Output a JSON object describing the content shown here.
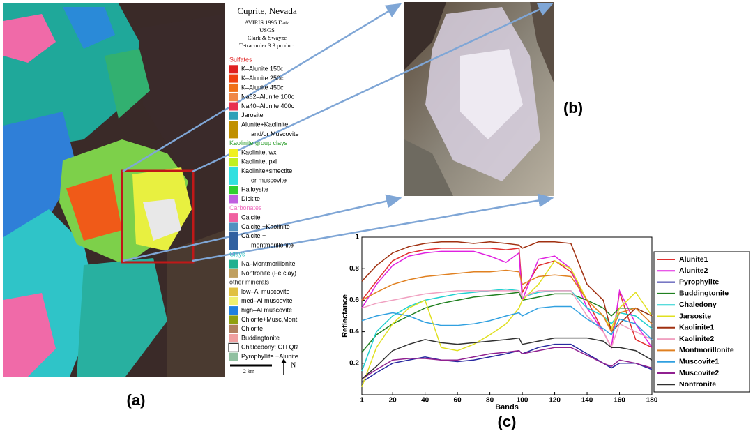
{
  "map": {
    "title": "Cuprite, Nevada",
    "credits": [
      "AVIRIS 1995 Data",
      "USGS",
      "Clark & Swayze",
      "Tetracorder 3.3 product"
    ],
    "sections": [
      {
        "heading": "Sulfates",
        "color": "#e02020",
        "items": [
          {
            "lines": [
              "K–Alunite 150c"
            ],
            "color": "#e02020"
          },
          {
            "lines": [
              "K–Alunite 250c"
            ],
            "color": "#f04010"
          },
          {
            "lines": [
              "K–Alunite 450c"
            ],
            "color": "#f07018"
          },
          {
            "lines": [
              "Na82–Alunite 100c"
            ],
            "color": "#f08848"
          },
          {
            "lines": [
              "Na40–Alunite 400c"
            ],
            "color": "#e83050"
          },
          {
            "lines": [
              "Jarosite"
            ],
            "color": "#30a0b8"
          },
          {
            "lines": [
              "Alunite+Kaolinite",
              "and/or Muscovite"
            ],
            "color": "#c09000"
          }
        ]
      },
      {
        "heading": "Kaolinite group clays",
        "color": "#30a030",
        "items": [
          {
            "lines": [
              "Kaolinite, wxl"
            ],
            "color": "#f0f020"
          },
          {
            "lines": [
              "Kaolinite, pxl"
            ],
            "color": "#c0f020"
          },
          {
            "lines": [
              "Kaolinite+smectite",
              "or muscovite"
            ],
            "color": "#30e0e0"
          },
          {
            "lines": [
              "Halloysite"
            ],
            "color": "#30d030"
          },
          {
            "lines": [
              "Dickite"
            ],
            "color": "#c060e0"
          }
        ]
      },
      {
        "heading": "Carbonates",
        "color": "#f070c0",
        "items": [
          {
            "lines": [
              "Calcite"
            ],
            "color": "#f060a0"
          },
          {
            "lines": [
              "Calcite +Kaolinite"
            ],
            "color": "#5090c0"
          },
          {
            "lines": [
              "Calcite +",
              "montmorillonite"
            ],
            "color": "#3060a0"
          }
        ]
      },
      {
        "heading": "Clays",
        "color": "#30c0c0",
        "items": [
          {
            "lines": [
              "Na–Montmorillonite"
            ],
            "color": "#20b090"
          },
          {
            "lines": [
              "Nontronite (Fe clay)"
            ],
            "color": "#c0a060"
          }
        ]
      },
      {
        "heading": "other minerals",
        "color": "#303030",
        "items": [
          {
            "lines": [
              "low–Al muscovite"
            ],
            "color": "#e0c040"
          },
          {
            "lines": [
              "med–Al muscovite"
            ],
            "color": "#f0f070"
          },
          {
            "lines": [
              "high–Al muscovite"
            ],
            "color": "#2080e0"
          },
          {
            "lines": [
              "Chlorite+Musc,Mont"
            ],
            "color": "#90a010"
          },
          {
            "lines": [
              "Chlorite"
            ],
            "color": "#b08060"
          },
          {
            "lines": [
              "Buddingtonite"
            ],
            "color": "#f0a0a0"
          },
          {
            "lines": [
              "Chalcedony: OH Qtz"
            ],
            "color": "#ffffff"
          },
          {
            "lines": [
              "Pyrophyllite +Alunite"
            ],
            "color": "#90c0a0"
          }
        ]
      }
    ],
    "scale": "2 km",
    "north": "N"
  },
  "panel_labels": [
    "(a)",
    "(b)",
    "(c)"
  ],
  "chart_data": {
    "type": "line",
    "xlabel": "Bands",
    "ylabel": "Reflectance",
    "x": [
      1,
      10,
      20,
      30,
      40,
      50,
      60,
      70,
      80,
      90,
      98,
      100,
      110,
      120,
      130,
      140,
      150,
      155,
      160,
      170,
      180
    ],
    "xlim": [
      1,
      180
    ],
    "xticks": [
      1,
      20,
      40,
      60,
      80,
      100,
      120,
      140,
      160,
      180
    ],
    "ylim": [
      0,
      1
    ],
    "yticks": [
      0.2,
      0.4,
      0.6,
      0.8,
      1
    ],
    "legend": "right",
    "series": [
      {
        "name": "Alunite1",
        "color": "#e03030",
        "values": [
          0.6,
          0.72,
          0.85,
          0.9,
          0.92,
          0.93,
          0.93,
          0.93,
          0.93,
          0.92,
          0.93,
          0.65,
          0.82,
          0.85,
          0.78,
          0.6,
          0.4,
          0.3,
          0.65,
          0.35,
          0.3
        ]
      },
      {
        "name": "Alunite2",
        "color": "#e020e0",
        "values": [
          0.55,
          0.7,
          0.82,
          0.88,
          0.9,
          0.91,
          0.91,
          0.91,
          0.88,
          0.84,
          0.9,
          0.6,
          0.86,
          0.88,
          0.8,
          0.55,
          0.4,
          0.3,
          0.66,
          0.45,
          0.3
        ]
      },
      {
        "name": "Pyrophylite",
        "color": "#2828a0",
        "values": [
          0.08,
          0.14,
          0.2,
          0.22,
          0.24,
          0.22,
          0.21,
          0.22,
          0.24,
          0.26,
          0.28,
          0.26,
          0.3,
          0.32,
          0.32,
          0.26,
          0.2,
          0.17,
          0.2,
          0.2,
          0.16
        ]
      },
      {
        "name": "Buddingtonite",
        "color": "#208020",
        "values": [
          0.27,
          0.38,
          0.45,
          0.5,
          0.55,
          0.58,
          0.6,
          0.62,
          0.63,
          0.64,
          0.65,
          0.6,
          0.62,
          0.64,
          0.64,
          0.6,
          0.55,
          0.5,
          0.55,
          0.55,
          0.5
        ]
      },
      {
        "name": "Chaledony",
        "color": "#20d0d0",
        "values": [
          0.15,
          0.4,
          0.5,
          0.56,
          0.6,
          0.62,
          0.64,
          0.65,
          0.66,
          0.67,
          0.66,
          0.62,
          0.65,
          0.66,
          0.66,
          0.55,
          0.5,
          0.45,
          0.52,
          0.5,
          0.42
        ]
      },
      {
        "name": "Jarsosite",
        "color": "#e0e020",
        "values": [
          0.05,
          0.3,
          0.45,
          0.55,
          0.6,
          0.3,
          0.28,
          0.32,
          0.38,
          0.45,
          0.55,
          0.6,
          0.7,
          0.85,
          0.8,
          0.6,
          0.5,
          0.42,
          0.55,
          0.65,
          0.5
        ]
      },
      {
        "name": "Kaolinite1",
        "color": "#a03010",
        "values": [
          0.72,
          0.82,
          0.9,
          0.94,
          0.96,
          0.97,
          0.97,
          0.96,
          0.97,
          0.96,
          0.95,
          0.93,
          0.97,
          0.97,
          0.96,
          0.7,
          0.6,
          0.4,
          0.45,
          0.55,
          0.5
        ]
      },
      {
        "name": "Kaolinite2",
        "color": "#f0a0c0",
        "values": [
          0.55,
          0.58,
          0.6,
          0.62,
          0.64,
          0.65,
          0.66,
          0.66,
          0.66,
          0.66,
          0.66,
          0.62,
          0.66,
          0.66,
          0.66,
          0.5,
          0.4,
          0.3,
          0.45,
          0.4,
          0.35
        ]
      },
      {
        "name": "Montmorillonite",
        "color": "#e08020",
        "values": [
          0.6,
          0.65,
          0.7,
          0.73,
          0.75,
          0.76,
          0.77,
          0.78,
          0.78,
          0.79,
          0.78,
          0.7,
          0.75,
          0.76,
          0.75,
          0.6,
          0.5,
          0.4,
          0.52,
          0.55,
          0.45
        ]
      },
      {
        "name": "Muscovite1",
        "color": "#30a0e0",
        "values": [
          0.47,
          0.5,
          0.52,
          0.5,
          0.46,
          0.44,
          0.44,
          0.45,
          0.47,
          0.5,
          0.52,
          0.5,
          0.55,
          0.56,
          0.56,
          0.48,
          0.42,
          0.38,
          0.48,
          0.45,
          0.35
        ]
      },
      {
        "name": "Muscovite2",
        "color": "#902090",
        "values": [
          0.1,
          0.16,
          0.22,
          0.23,
          0.23,
          0.22,
          0.22,
          0.24,
          0.26,
          0.27,
          0.28,
          0.26,
          0.28,
          0.3,
          0.3,
          0.25,
          0.2,
          0.18,
          0.22,
          0.2,
          0.17
        ]
      },
      {
        "name": "Nontronite",
        "color": "#303030",
        "values": [
          0.1,
          0.18,
          0.28,
          0.32,
          0.35,
          0.33,
          0.32,
          0.33,
          0.34,
          0.35,
          0.36,
          0.32,
          0.34,
          0.36,
          0.36,
          0.36,
          0.34,
          0.3,
          0.3,
          0.28,
          0.22
        ]
      }
    ]
  }
}
